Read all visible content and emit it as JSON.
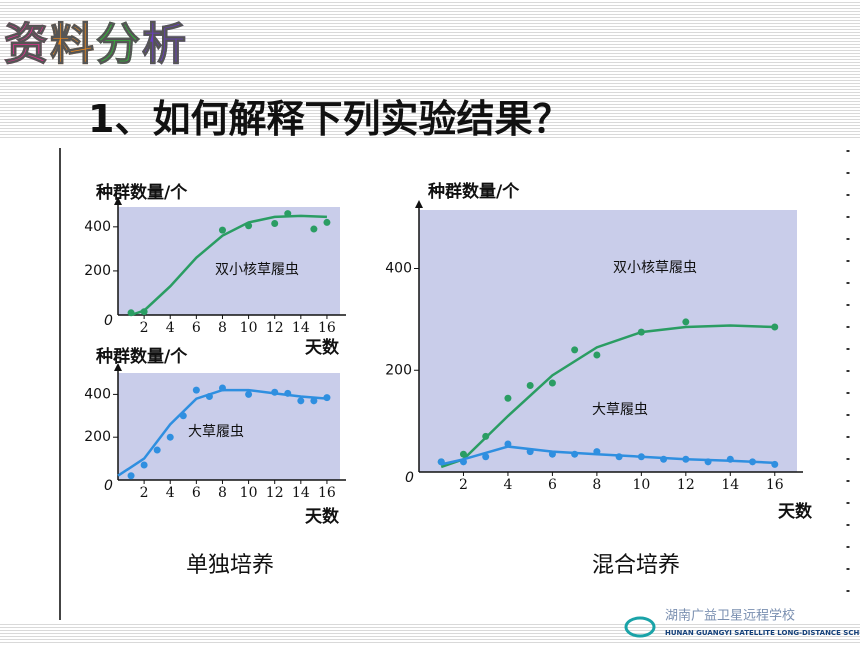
{
  "slide_title": "资料分析",
  "question": "1、如何解释下列实验结果？",
  "captions": [
    "单独培养",
    "混合培养"
  ],
  "logo": {
    "cn": "湖南广益卫星远程学校",
    "en": "HUNAN GUANGYI SATELLITE LONG-DISTANCE SCHOOL"
  },
  "chart_data": [
    {
      "type": "scatter",
      "ylabel": "种群数量/个",
      "xlabel": "天数",
      "annotations": [
        "双小核草履虫"
      ],
      "xlim": [
        0,
        17
      ],
      "ylim": [
        0,
        490
      ],
      "xticks": [
        2,
        4,
        6,
        8,
        10,
        12,
        14,
        16
      ],
      "yticks": [
        0,
        200,
        400
      ],
      "series": [
        {
          "style": "line",
          "color": "#2a9d63",
          "x": [
            1,
            2,
            4,
            6,
            8,
            10,
            12,
            14,
            16
          ],
          "values": [
            0,
            20,
            130,
            260,
            360,
            420,
            445,
            450,
            445
          ]
        },
        {
          "style": "scatter",
          "color": "#2a9d63",
          "x": [
            1,
            2,
            8,
            10,
            12,
            13,
            15,
            16
          ],
          "values": [
            10,
            15,
            385,
            405,
            415,
            460,
            390,
            420
          ]
        }
      ]
    },
    {
      "type": "scatter",
      "ylabel": "种群数量/个",
      "xlabel": "天数",
      "annotations": [
        "大草履虫"
      ],
      "xlim": [
        0,
        17
      ],
      "ylim": [
        0,
        500
      ],
      "xticks": [
        2,
        4,
        6,
        8,
        10,
        12,
        14,
        16
      ],
      "yticks": [
        0,
        200,
        400
      ],
      "series": [
        {
          "style": "line",
          "color": "#2f8fe0",
          "x": [
            0,
            2,
            4,
            6,
            8,
            10,
            12,
            14,
            16
          ],
          "values": [
            20,
            100,
            260,
            380,
            420,
            420,
            405,
            390,
            380
          ]
        },
        {
          "style": "scatter",
          "color": "#2f8fe0",
          "x": [
            1,
            2,
            3,
            4,
            5,
            6,
            7,
            8,
            10,
            12,
            13,
            14,
            15,
            16
          ],
          "values": [
            20,
            70,
            140,
            200,
            300,
            420,
            390,
            430,
            400,
            410,
            405,
            370,
            370,
            385
          ]
        }
      ]
    },
    {
      "type": "scatter",
      "ylabel": "种群数量/个",
      "xlabel": "天数",
      "annotations": [
        "双小核草履虫",
        "大草履虫"
      ],
      "xlim": [
        0,
        17
      ],
      "ylim": [
        0,
        515
      ],
      "xticks": [
        2,
        4,
        6,
        8,
        10,
        12,
        14,
        16
      ],
      "yticks": [
        0,
        200,
        400
      ],
      "series": [
        {
          "style": "line",
          "color": "#2a9d63",
          "x": [
            1,
            2,
            4,
            6,
            8,
            10,
            12,
            14,
            16
          ],
          "values": [
            10,
            25,
            110,
            190,
            245,
            275,
            285,
            288,
            285
          ]
        },
        {
          "style": "scatter",
          "color": "#2a9d63",
          "x": [
            1,
            2,
            3,
            4,
            5,
            6,
            7,
            8,
            10,
            12,
            16
          ],
          "values": [
            20,
            35,
            70,
            145,
            170,
            175,
            240,
            230,
            275,
            295,
            285
          ]
        },
        {
          "style": "line",
          "color": "#2f8fe0",
          "x": [
            1,
            2,
            4,
            6,
            8,
            10,
            12,
            14,
            16
          ],
          "values": [
            15,
            25,
            50,
            40,
            35,
            30,
            25,
            22,
            18
          ]
        },
        {
          "style": "scatter",
          "color": "#2f8fe0",
          "x": [
            1,
            2,
            3,
            4,
            5,
            6,
            7,
            8,
            9,
            10,
            11,
            12,
            13,
            14,
            15,
            16
          ],
          "values": [
            20,
            20,
            30,
            55,
            40,
            35,
            35,
            40,
            30,
            30,
            25,
            25,
            20,
            25,
            20,
            15
          ]
        }
      ]
    }
  ]
}
